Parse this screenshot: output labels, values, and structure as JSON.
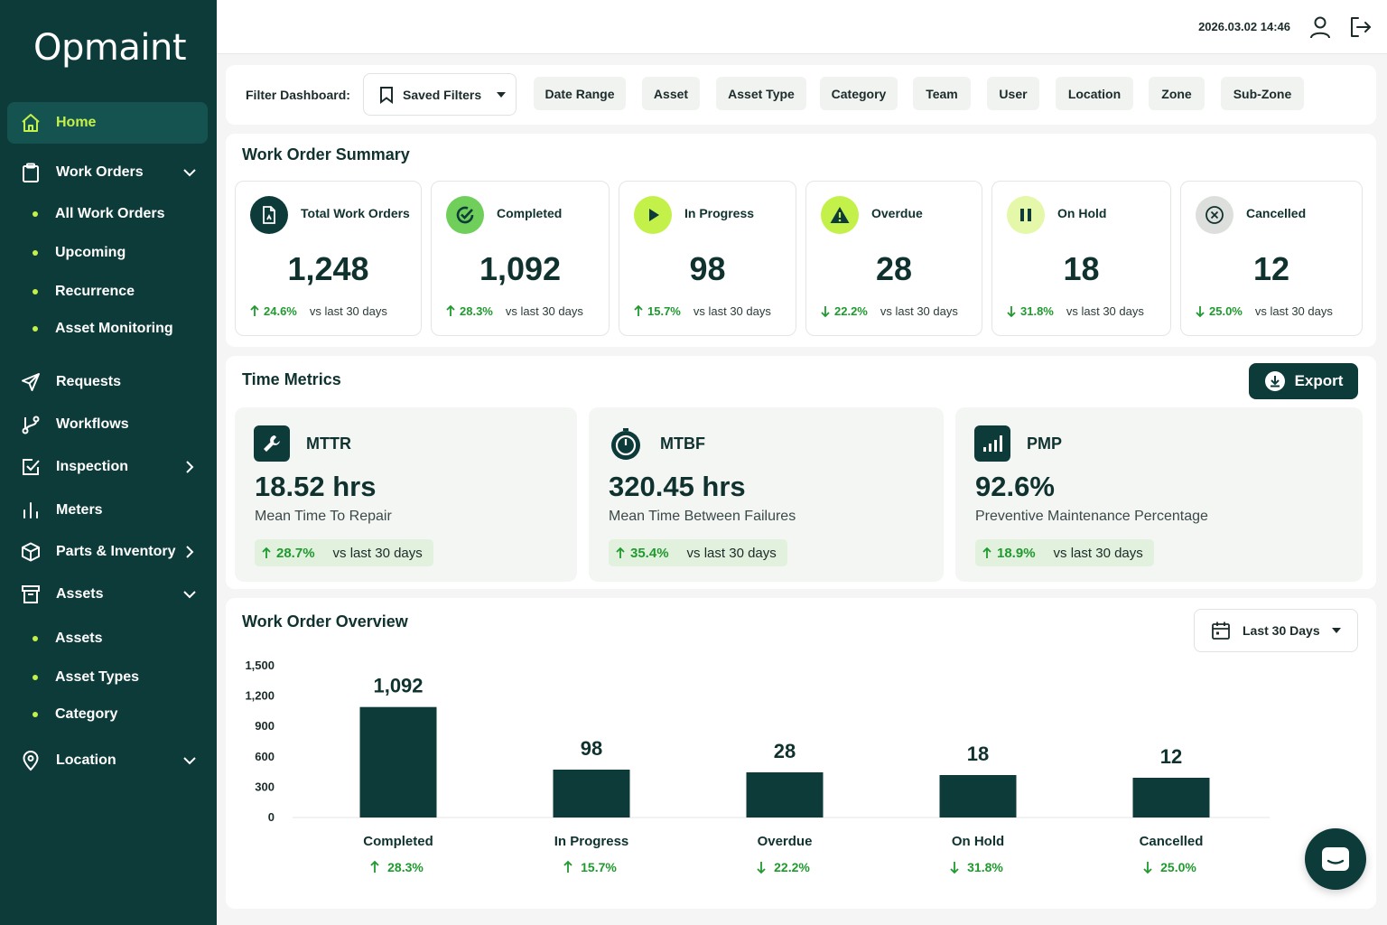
{
  "app": {
    "logo": "Opmaint"
  },
  "sidebar": {
    "home": "Home",
    "work_orders": "Work Orders",
    "work_orders_sub": [
      "All Work Orders",
      "Upcoming",
      "Recurrence",
      "Asset Monitoring"
    ],
    "requests": "Requests",
    "workflows": "Workflows",
    "inspection": "Inspection",
    "meters": "Meters",
    "parts_inventory": "Parts & Inventory",
    "assets": "Assets",
    "assets_sub": [
      "Assets",
      "Asset Types",
      "Category"
    ],
    "location": "Location"
  },
  "header": {
    "datetime": "2026.03.02 14:46",
    "user_icon": "user-icon",
    "logout_icon": "logout-icon"
  },
  "filters": {
    "label": "Filter Dashboard:",
    "saved_filters": "Saved Filters",
    "chips": [
      "Date Range",
      "Asset",
      "Asset Type",
      "Category",
      "Team",
      "User",
      "Location",
      "Zone",
      "Sub-Zone"
    ]
  },
  "summary": {
    "title": "Work Order Summary",
    "compare_text": "vs last 30 days",
    "cards": [
      {
        "label": "Total Work Orders",
        "value": "1,248",
        "change": "24.6%",
        "direction": "up",
        "icon": "document-icon"
      },
      {
        "label": "Completed",
        "value": "1,092",
        "change": "28.3%",
        "direction": "up",
        "icon": "check-circle-icon"
      },
      {
        "label": "In Progress",
        "value": "98",
        "change": "15.7%",
        "direction": "up",
        "icon": "play-icon"
      },
      {
        "label": "Overdue",
        "value": "28",
        "change": "22.2%",
        "direction": "down",
        "icon": "warning-icon"
      },
      {
        "label": "On Hold",
        "value": "18",
        "change": "31.8%",
        "direction": "down",
        "icon": "pause-icon"
      },
      {
        "label": "Cancelled",
        "value": "12",
        "change": "25.0%",
        "direction": "down",
        "icon": "cancel-icon"
      }
    ]
  },
  "time_metrics": {
    "title": "Time Metrics",
    "export_label": "Export",
    "compare_text": "vs last 30 days",
    "cards": [
      {
        "label": "MTTR",
        "value": "18.52 hrs",
        "description": "Mean Time To Repair",
        "change": "28.7%",
        "icon": "wrench-icon"
      },
      {
        "label": "MTBF",
        "value": "320.45 hrs",
        "description": "Mean Time Between Failures",
        "change": "35.4%",
        "icon": "stopwatch-icon"
      },
      {
        "label": "PMP",
        "value": "92.6%",
        "description": "Preventive Maintenance Percentage",
        "change": "18.9%",
        "icon": "bar-signal-icon"
      }
    ]
  },
  "overview": {
    "title": "Work Order Overview",
    "range_label": "Last 30 Days"
  },
  "chart_data": {
    "type": "bar",
    "categories": [
      "Completed",
      "In Progress",
      "Overdue",
      "On Hold",
      "Cancelled"
    ],
    "values": [
      1092,
      98,
      28,
      18,
      12
    ],
    "value_labels": [
      "1,092",
      "98",
      "28",
      "18",
      "12"
    ],
    "changes": [
      "28.3%",
      "15.7%",
      "22.2%",
      "31.8%",
      "25.0%"
    ],
    "directions": [
      "up",
      "up",
      "down",
      "down",
      "down"
    ],
    "y_ticks": [
      0,
      300,
      600,
      900,
      1200,
      1500
    ],
    "y_tick_labels": [
      "0",
      "300",
      "600",
      "900",
      "1,200",
      "1,500"
    ],
    "ylim": [
      0,
      1500
    ],
    "bar_color": "#0d3b3a",
    "change_color": "#1f9a2e"
  },
  "colors": {
    "sidebar": "#0d3b3a",
    "accent": "#c4f04a",
    "positive": "#1f9a2e"
  }
}
